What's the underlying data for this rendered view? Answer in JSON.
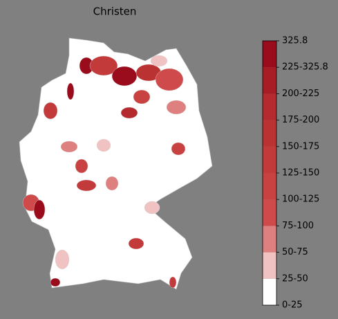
{
  "title": "Christen",
  "colorbar": {
    "labels": [
      "0-25",
      "25-50",
      "50-75",
      "75-100",
      "100-125",
      "125-150",
      "150-175",
      "175-200",
      "200-225",
      "225-325.8",
      "325.8"
    ],
    "colors": [
      "#ffffff",
      "#f0c2c2",
      "#de8080",
      "#cf4a4a",
      "#c94242",
      "#c23a3a",
      "#bb3232",
      "#b42a2e",
      "#a81c26",
      "#9a0c1c"
    ]
  }
}
